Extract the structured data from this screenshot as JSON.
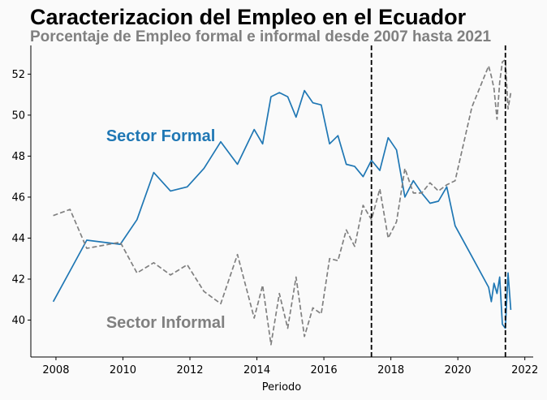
{
  "chart_data": {
    "type": "line",
    "title": "Caracterizacion del Empleo en el Ecuador",
    "subtitle": "Porcentaje de Empleo formal e informal desde 2007 hasta 2021",
    "xlabel": "Periodo",
    "ylabel": "",
    "xlim": [
      2007.25,
      2022.25
    ],
    "ylim": [
      38.2,
      53.4
    ],
    "xticks": [
      2008,
      2010,
      2012,
      2014,
      2016,
      2018,
      2020,
      2022
    ],
    "yticks": [
      40,
      42,
      44,
      46,
      48,
      50,
      52
    ],
    "grid": false,
    "legend": "none",
    "series": [
      {
        "name": "Sector Formal",
        "color": "#1f77b4",
        "dash": "solid",
        "x": [
          2007.92,
          2008.42,
          2008.92,
          2009.92,
          2010.42,
          2010.92,
          2011.42,
          2011.92,
          2012.42,
          2012.92,
          2013.42,
          2013.92,
          2014.17,
          2014.42,
          2014.67,
          2014.92,
          2015.17,
          2015.42,
          2015.67,
          2015.92,
          2016.17,
          2016.42,
          2016.67,
          2016.92,
          2017.17,
          2017.42,
          2017.67,
          2017.92,
          2018.17,
          2018.42,
          2018.67,
          2018.92,
          2019.17,
          2019.42,
          2019.67,
          2019.92,
          2020.42,
          2020.92,
          2021.0,
          2021.08,
          2021.17,
          2021.25,
          2021.33,
          2021.42,
          2021.5,
          2021.58
        ],
        "y": [
          40.9,
          42.4,
          43.9,
          43.7,
          44.9,
          47.2,
          46.3,
          46.5,
          47.4,
          48.7,
          47.6,
          49.3,
          48.6,
          50.9,
          51.1,
          50.9,
          49.9,
          51.2,
          50.6,
          50.5,
          48.6,
          49.0,
          47.6,
          47.5,
          47.0,
          47.8,
          47.3,
          48.9,
          48.3,
          46.0,
          46.8,
          46.2,
          45.7,
          45.8,
          46.5,
          44.6,
          43.1,
          41.6,
          40.9,
          41.8,
          41.3,
          42.1,
          39.8,
          39.6,
          42.3,
          40.5
        ]
      },
      {
        "name": "Sector Informal",
        "color": "#808080",
        "dash": "dashed",
        "x": [
          2007.92,
          2008.42,
          2008.92,
          2009.92,
          2010.42,
          2010.92,
          2011.42,
          2011.92,
          2012.42,
          2012.92,
          2013.42,
          2013.92,
          2014.17,
          2014.42,
          2014.67,
          2014.92,
          2015.17,
          2015.42,
          2015.67,
          2015.92,
          2016.17,
          2016.42,
          2016.67,
          2016.92,
          2017.17,
          2017.42,
          2017.67,
          2017.92,
          2018.17,
          2018.42,
          2018.67,
          2018.92,
          2019.17,
          2019.42,
          2019.67,
          2019.92,
          2020.42,
          2020.92,
          2021.0,
          2021.08,
          2021.17,
          2021.25,
          2021.33,
          2021.42,
          2021.5,
          2021.58
        ],
        "y": [
          45.1,
          45.4,
          43.5,
          43.8,
          42.3,
          42.8,
          42.2,
          42.7,
          41.4,
          40.8,
          43.2,
          40.1,
          41.7,
          38.8,
          41.3,
          39.6,
          42.1,
          39.2,
          40.6,
          40.3,
          43.0,
          42.9,
          44.4,
          43.6,
          45.6,
          44.9,
          46.4,
          44.0,
          44.8,
          47.4,
          46.2,
          46.2,
          46.7,
          46.3,
          46.6,
          46.8,
          50.4,
          52.4,
          51.9,
          51.3,
          49.8,
          51.6,
          52.6,
          52.7,
          50.3,
          51.1
        ]
      }
    ],
    "vlines": [
      2017.42,
      2021.42
    ],
    "vline_color": "#000000",
    "annotations": [
      {
        "text": "Sector Formal",
        "x": 2009.5,
        "y": 49.0,
        "color": "#1f77b4"
      },
      {
        "text": "Sector Informal",
        "x": 2009.5,
        "y": 39.9,
        "color": "#808080"
      }
    ]
  }
}
